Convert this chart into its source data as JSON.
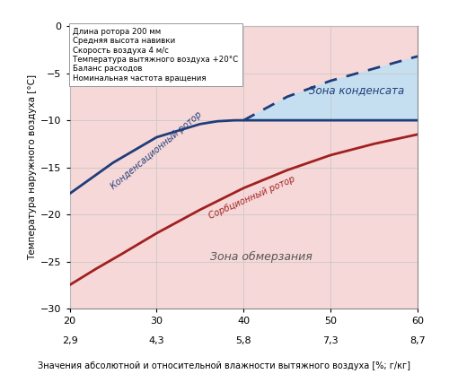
{
  "ylabel": "Температура наружного воздуха [°С]",
  "xlabel": "Значения абсолютной и относительной влажности вытяжного воздуха [%; г/кг]",
  "ylim": [
    -30,
    0
  ],
  "xlim": [
    20,
    60
  ],
  "x_ticks_pct": [
    20,
    30,
    40,
    50,
    60
  ],
  "x_labels_gkg": [
    "2,9",
    "4,3",
    "5,8",
    "7,3",
    "8,7"
  ],
  "x_unit_pct": "[%]",
  "x_unit_gkg": "[г/кг]",
  "y_ticks": [
    0,
    -5,
    -10,
    -15,
    -20,
    -25,
    -30
  ],
  "condensation_x": [
    20,
    25,
    30,
    35,
    37,
    39,
    40,
    45,
    50,
    55,
    60
  ],
  "condensation_y": [
    -17.8,
    -14.5,
    -11.8,
    -10.4,
    -10.1,
    -10.0,
    -10.0,
    -10.0,
    -10.0,
    -10.0,
    -10.0
  ],
  "condensation_dashed_x": [
    40,
    45,
    50,
    55,
    60
  ],
  "condensation_dashed_y": [
    -10.0,
    -7.5,
    -5.8,
    -4.5,
    -3.2
  ],
  "sorption_x": [
    20,
    23,
    26,
    30,
    35,
    40,
    45,
    50,
    55,
    60
  ],
  "sorption_y": [
    -27.5,
    -25.8,
    -24.2,
    -22.0,
    -19.5,
    -17.2,
    -15.3,
    -13.7,
    -12.5,
    -11.5
  ],
  "condensation_color": "#1f3d7a",
  "sorption_color": "#a02020",
  "fill_condensate_color": "#c5dff0",
  "fill_bg_color": "#f7d8d8",
  "grid_color": "#c8c8c8",
  "bg_color": "#f7d8d8",
  "text_condensation_rotor": "Конденсационный ротор",
  "text_sorption_rotor": "Сорбционный ротор",
  "text_condensate_zone": "Зона конденсата",
  "text_frost_zone": "Зона обмерзания",
  "legend_text": "Длина ротора 200 мм\nСредняя высота навивки\nСкорость воздуха 4 м/с\nТемпература вытяжного воздуха +20°С\nБаланс расходов\nНоминальная частота вращения",
  "linewidth_main": 2.0
}
